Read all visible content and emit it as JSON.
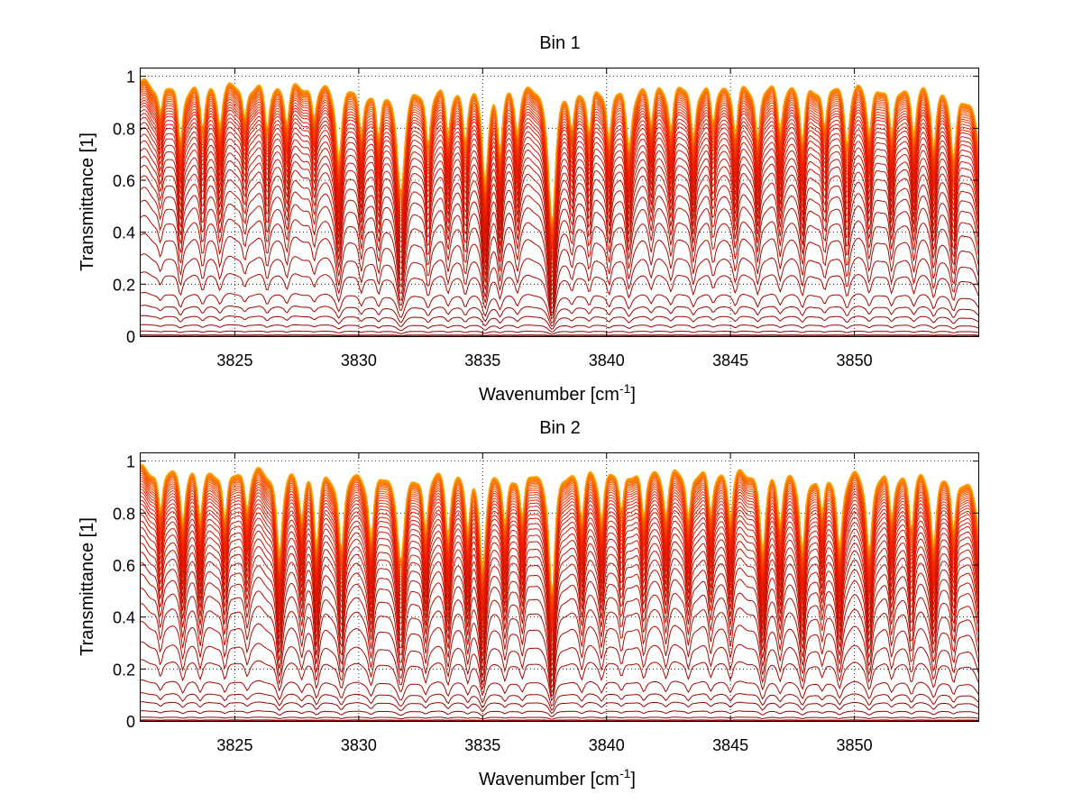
{
  "chart_data": [
    {
      "type": "line",
      "title": "Bin 1",
      "xlabel": "Wavenumber [cm",
      "xlabel_sup": "-1",
      "xlabel_end": "]",
      "ylabel": "Transmittance [1]",
      "xlim": [
        3821.2,
        3855.0
      ],
      "ylim": [
        0,
        1.03
      ],
      "xticks": [
        3825,
        3830,
        3835,
        3840,
        3845,
        3850
      ],
      "yticks": [
        0,
        0.2,
        0.4,
        0.6,
        0.8,
        1
      ],
      "ytick_labels": [
        "0",
        "0.2",
        "0.4",
        "0.6",
        "0.8",
        "1"
      ],
      "grid": "dotted",
      "legend": "none",
      "color_low": "#8b0000",
      "color_mid": "#ee1c00",
      "color_high": "#ffa500",
      "series_count": 45,
      "continuum_levels": [
        0.0,
        0.005,
        0.02,
        0.045,
        0.08,
        0.12,
        0.17,
        0.25,
        0.32,
        0.4,
        0.47,
        0.53,
        0.58,
        0.625,
        0.665,
        0.7,
        0.73,
        0.76,
        0.785,
        0.81,
        0.83,
        0.85,
        0.865,
        0.88,
        0.895,
        0.905,
        0.915,
        0.925,
        0.935,
        0.943,
        0.951,
        0.958,
        0.964,
        0.97,
        0.975,
        0.979,
        0.983,
        0.986,
        0.989,
        0.991,
        0.993,
        0.995,
        0.996,
        0.997,
        0.998
      ],
      "absorption_lines": [
        {
          "x": 3822.0,
          "depth": 0.25,
          "width": 0.1
        },
        {
          "x": 3822.8,
          "depth": 0.55,
          "width": 0.1
        },
        {
          "x": 3823.7,
          "depth": 0.4,
          "width": 0.1
        },
        {
          "x": 3824.4,
          "depth": 0.35,
          "width": 0.1
        },
        {
          "x": 3825.4,
          "depth": 0.3,
          "width": 0.1
        },
        {
          "x": 3826.3,
          "depth": 0.4,
          "width": 0.1
        },
        {
          "x": 3827.1,
          "depth": 0.35,
          "width": 0.1
        },
        {
          "x": 3828.2,
          "depth": 0.3,
          "width": 0.1
        },
        {
          "x": 3829.2,
          "depth": 0.7,
          "width": 0.12
        },
        {
          "x": 3830.1,
          "depth": 0.45,
          "width": 0.1
        },
        {
          "x": 3830.8,
          "depth": 0.5,
          "width": 0.1
        },
        {
          "x": 3831.7,
          "depth": 1.1,
          "width": 0.16
        },
        {
          "x": 3832.8,
          "depth": 0.55,
          "width": 0.1
        },
        {
          "x": 3833.6,
          "depth": 0.45,
          "width": 0.1
        },
        {
          "x": 3834.3,
          "depth": 0.5,
          "width": 0.1
        },
        {
          "x": 3835.1,
          "depth": 0.95,
          "width": 0.12
        },
        {
          "x": 3835.7,
          "depth": 0.6,
          "width": 0.1
        },
        {
          "x": 3836.4,
          "depth": 0.4,
          "width": 0.1
        },
        {
          "x": 3837.8,
          "depth": 1.6,
          "width": 0.14
        },
        {
          "x": 3838.6,
          "depth": 0.35,
          "width": 0.1
        },
        {
          "x": 3839.3,
          "depth": 0.45,
          "width": 0.1
        },
        {
          "x": 3840.1,
          "depth": 0.5,
          "width": 0.1
        },
        {
          "x": 3840.9,
          "depth": 0.6,
          "width": 0.12
        },
        {
          "x": 3841.8,
          "depth": 0.35,
          "width": 0.1
        },
        {
          "x": 3842.6,
          "depth": 0.4,
          "width": 0.1
        },
        {
          "x": 3843.5,
          "depth": 0.5,
          "width": 0.1
        },
        {
          "x": 3844.3,
          "depth": 0.35,
          "width": 0.1
        },
        {
          "x": 3845.2,
          "depth": 0.45,
          "width": 0.1
        },
        {
          "x": 3846.1,
          "depth": 0.5,
          "width": 0.1
        },
        {
          "x": 3847.0,
          "depth": 0.4,
          "width": 0.1
        },
        {
          "x": 3847.9,
          "depth": 0.55,
          "width": 0.1
        },
        {
          "x": 3848.8,
          "depth": 0.4,
          "width": 0.1
        },
        {
          "x": 3849.7,
          "depth": 0.55,
          "width": 0.1
        },
        {
          "x": 3850.6,
          "depth": 0.45,
          "width": 0.1
        },
        {
          "x": 3851.5,
          "depth": 0.5,
          "width": 0.1
        },
        {
          "x": 3852.4,
          "depth": 0.45,
          "width": 0.1
        },
        {
          "x": 3853.2,
          "depth": 0.55,
          "width": 0.1
        },
        {
          "x": 3854.0,
          "depth": 0.7,
          "width": 0.12
        },
        {
          "x": 3855.2,
          "depth": 0.9,
          "width": 0.25
        }
      ]
    },
    {
      "type": "line",
      "title": "Bin 2",
      "xlabel": "Wavenumber [cm",
      "xlabel_sup": "-1",
      "xlabel_end": "]",
      "ylabel": "Transmittance [1]",
      "xlim": [
        3821.2,
        3855.0
      ],
      "ylim": [
        0,
        1.03
      ],
      "xticks": [
        3825,
        3830,
        3835,
        3840,
        3845,
        3850
      ],
      "yticks": [
        0,
        0.2,
        0.4,
        0.6,
        0.8,
        1
      ],
      "ytick_labels": [
        "0",
        "0.2",
        "0.4",
        "0.6",
        "0.8",
        "1"
      ],
      "grid": "dotted",
      "legend": "none",
      "color_low": "#8b0000",
      "color_mid": "#ee1c00",
      "color_high": "#ffa500",
      "series_count": 45,
      "continuum_levels": [
        0.0,
        0.004,
        0.015,
        0.04,
        0.075,
        0.11,
        0.16,
        0.24,
        0.31,
        0.39,
        0.46,
        0.52,
        0.575,
        0.62,
        0.66,
        0.695,
        0.725,
        0.755,
        0.78,
        0.805,
        0.825,
        0.845,
        0.86,
        0.875,
        0.89,
        0.902,
        0.913,
        0.923,
        0.933,
        0.941,
        0.949,
        0.956,
        0.963,
        0.969,
        0.974,
        0.978,
        0.982,
        0.985,
        0.988,
        0.99,
        0.992,
        0.994,
        0.996,
        0.997,
        0.998
      ],
      "absorption_lines": [
        {
          "x": 3822.0,
          "depth": 0.4,
          "width": 0.1
        },
        {
          "x": 3822.9,
          "depth": 0.45,
          "width": 0.1
        },
        {
          "x": 3823.6,
          "depth": 0.45,
          "width": 0.1
        },
        {
          "x": 3824.6,
          "depth": 0.5,
          "width": 0.1
        },
        {
          "x": 3825.5,
          "depth": 0.35,
          "width": 0.1
        },
        {
          "x": 3826.8,
          "depth": 0.85,
          "width": 0.12
        },
        {
          "x": 3827.7,
          "depth": 0.4,
          "width": 0.1
        },
        {
          "x": 3828.3,
          "depth": 0.75,
          "width": 0.1
        },
        {
          "x": 3829.3,
          "depth": 0.8,
          "width": 0.12
        },
        {
          "x": 3830.5,
          "depth": 0.65,
          "width": 0.12
        },
        {
          "x": 3831.7,
          "depth": 0.9,
          "width": 0.16
        },
        {
          "x": 3832.7,
          "depth": 0.55,
          "width": 0.1
        },
        {
          "x": 3833.6,
          "depth": 0.6,
          "width": 0.1
        },
        {
          "x": 3834.4,
          "depth": 0.55,
          "width": 0.1
        },
        {
          "x": 3835.0,
          "depth": 1.0,
          "width": 0.12
        },
        {
          "x": 3835.9,
          "depth": 0.5,
          "width": 0.1
        },
        {
          "x": 3836.6,
          "depth": 0.45,
          "width": 0.1
        },
        {
          "x": 3837.8,
          "depth": 1.4,
          "width": 0.12
        },
        {
          "x": 3839.0,
          "depth": 0.45,
          "width": 0.1
        },
        {
          "x": 3839.8,
          "depth": 0.45,
          "width": 0.1
        },
        {
          "x": 3840.6,
          "depth": 0.4,
          "width": 0.1
        },
        {
          "x": 3841.5,
          "depth": 0.45,
          "width": 0.1
        },
        {
          "x": 3842.4,
          "depth": 0.4,
          "width": 0.1
        },
        {
          "x": 3843.3,
          "depth": 0.45,
          "width": 0.1
        },
        {
          "x": 3844.2,
          "depth": 0.4,
          "width": 0.1
        },
        {
          "x": 3845.0,
          "depth": 0.45,
          "width": 0.1
        },
        {
          "x": 3846.3,
          "depth": 0.8,
          "width": 0.12
        },
        {
          "x": 3847.0,
          "depth": 0.45,
          "width": 0.1
        },
        {
          "x": 3847.9,
          "depth": 0.8,
          "width": 0.12
        },
        {
          "x": 3848.7,
          "depth": 0.4,
          "width": 0.1
        },
        {
          "x": 3849.4,
          "depth": 0.75,
          "width": 0.12
        },
        {
          "x": 3850.6,
          "depth": 0.8,
          "width": 0.12
        },
        {
          "x": 3851.5,
          "depth": 0.45,
          "width": 0.1
        },
        {
          "x": 3852.3,
          "depth": 0.55,
          "width": 0.1
        },
        {
          "x": 3853.2,
          "depth": 0.7,
          "width": 0.12
        },
        {
          "x": 3854.0,
          "depth": 0.55,
          "width": 0.1
        },
        {
          "x": 3855.2,
          "depth": 0.9,
          "width": 0.25
        }
      ]
    }
  ]
}
